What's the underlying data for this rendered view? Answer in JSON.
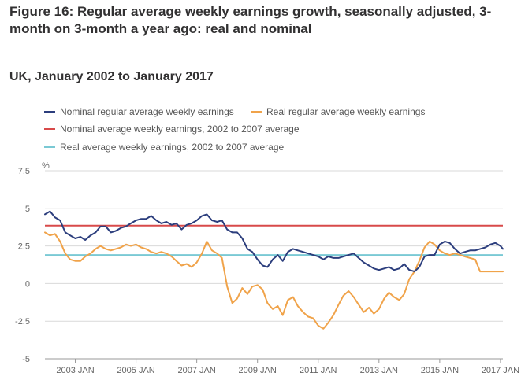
{
  "title": "Figure 16: Regular average weekly earnings growth, seasonally adjusted, 3-month on 3-month a year ago: real and nominal",
  "subtitle": "UK, January 2002 to January 2017",
  "colors": {
    "nominal": "#2c3e7d",
    "real": "#f0a34a",
    "nominal_avg": "#d84a4a",
    "real_avg": "#7ac9d4",
    "grid": "#d9d9d9",
    "axis_text": "#666666"
  },
  "legend": [
    {
      "key": "nominal",
      "label": "Nominal regular average weekly earnings"
    },
    {
      "key": "real",
      "label": "Real regular average weekly earnings"
    },
    {
      "key": "nominal_avg",
      "label": "Nominal average weekly earnings, 2002 to 2007 average"
    },
    {
      "key": "real_avg",
      "label": "Real average weekly earnings, 2002 to 2007 average"
    }
  ],
  "chart_data": {
    "type": "line",
    "title": "Figure 16: Regular average weekly earnings growth, seasonally adjusted, 3-month on 3-month a year ago: real and nominal",
    "ylabel": "%",
    "ylim": [
      -5,
      7.5
    ],
    "xlim": [
      2002.0,
      2017.08
    ],
    "yticks": [
      7.5,
      5,
      2.5,
      0,
      -2.5,
      -5
    ],
    "ytick_labels": [
      "7.5",
      "5",
      "2.5",
      "0",
      "-2.5",
      "-5"
    ],
    "xticks": [
      2003,
      2005,
      2007,
      2009,
      2011,
      2013,
      2015,
      2017
    ],
    "xtick_labels": [
      "2003 JAN",
      "2005 JAN",
      "2007 JAN",
      "2009 JAN",
      "2011 JAN",
      "2013 JAN",
      "2015 JAN",
      "2017 JAN"
    ],
    "series": [
      {
        "key": "nominal",
        "name": "Nominal regular average weekly earnings",
        "x": [
          2002.0,
          2002.17,
          2002.33,
          2002.5,
          2002.67,
          2002.83,
          2003.0,
          2003.17,
          2003.33,
          2003.5,
          2003.67,
          2003.83,
          2004.0,
          2004.17,
          2004.33,
          2004.5,
          2004.67,
          2004.83,
          2005.0,
          2005.17,
          2005.33,
          2005.5,
          2005.67,
          2005.83,
          2006.0,
          2006.17,
          2006.33,
          2006.5,
          2006.67,
          2006.83,
          2007.0,
          2007.17,
          2007.33,
          2007.5,
          2007.67,
          2007.83,
          2008.0,
          2008.17,
          2008.33,
          2008.5,
          2008.67,
          2008.83,
          2009.0,
          2009.17,
          2009.33,
          2009.5,
          2009.67,
          2009.83,
          2010.0,
          2010.17,
          2010.33,
          2010.5,
          2010.67,
          2010.83,
          2011.0,
          2011.17,
          2011.33,
          2011.5,
          2011.67,
          2011.83,
          2012.0,
          2012.17,
          2012.33,
          2012.5,
          2012.67,
          2012.83,
          2013.0,
          2013.17,
          2013.33,
          2013.5,
          2013.67,
          2013.83,
          2014.0,
          2014.17,
          2014.33,
          2014.5,
          2014.67,
          2014.83,
          2015.0,
          2015.17,
          2015.33,
          2015.5,
          2015.67,
          2015.83,
          2016.0,
          2016.17,
          2016.33,
          2016.5,
          2016.67,
          2016.83,
          2017.0,
          2017.08
        ],
        "values": [
          4.6,
          4.8,
          4.4,
          4.2,
          3.4,
          3.2,
          3.0,
          3.1,
          2.9,
          3.2,
          3.4,
          3.8,
          3.8,
          3.4,
          3.5,
          3.7,
          3.8,
          4.0,
          4.2,
          4.3,
          4.3,
          4.5,
          4.2,
          4.0,
          4.1,
          3.9,
          4.0,
          3.6,
          3.9,
          4.0,
          4.2,
          4.5,
          4.6,
          4.2,
          4.1,
          4.2,
          3.6,
          3.4,
          3.4,
          3.0,
          2.3,
          2.1,
          1.6,
          1.2,
          1.1,
          1.6,
          1.9,
          1.5,
          2.1,
          2.3,
          2.2,
          2.1,
          2.0,
          1.9,
          1.8,
          1.6,
          1.8,
          1.7,
          1.7,
          1.8,
          1.9,
          2.0,
          1.7,
          1.4,
          1.2,
          1.0,
          0.9,
          1.0,
          1.1,
          0.9,
          1.0,
          1.3,
          0.9,
          0.8,
          1.1,
          1.8,
          1.9,
          1.9,
          2.6,
          2.8,
          2.7,
          2.3,
          2.0,
          2.1,
          2.2,
          2.2,
          2.3,
          2.4,
          2.6,
          2.7,
          2.5,
          2.3
        ]
      },
      {
        "key": "real",
        "name": "Real regular average weekly earnings",
        "x": [
          2002.0,
          2002.17,
          2002.33,
          2002.5,
          2002.67,
          2002.83,
          2003.0,
          2003.17,
          2003.33,
          2003.5,
          2003.67,
          2003.83,
          2004.0,
          2004.17,
          2004.33,
          2004.5,
          2004.67,
          2004.83,
          2005.0,
          2005.17,
          2005.33,
          2005.5,
          2005.67,
          2005.83,
          2006.0,
          2006.17,
          2006.33,
          2006.5,
          2006.67,
          2006.83,
          2007.0,
          2007.17,
          2007.33,
          2007.5,
          2007.67,
          2007.83,
          2008.0,
          2008.17,
          2008.33,
          2008.5,
          2008.67,
          2008.83,
          2009.0,
          2009.17,
          2009.33,
          2009.5,
          2009.67,
          2009.83,
          2010.0,
          2010.17,
          2010.33,
          2010.5,
          2010.67,
          2010.83,
          2011.0,
          2011.17,
          2011.33,
          2011.5,
          2011.67,
          2011.83,
          2012.0,
          2012.17,
          2012.33,
          2012.5,
          2012.67,
          2012.83,
          2013.0,
          2013.17,
          2013.33,
          2013.5,
          2013.67,
          2013.83,
          2014.0,
          2014.17,
          2014.33,
          2014.5,
          2014.67,
          2014.83,
          2015.0,
          2015.17,
          2015.33,
          2015.5,
          2015.67,
          2015.83,
          2016.0,
          2016.17,
          2016.33,
          2016.5,
          2016.67,
          2016.83,
          2017.0,
          2017.08
        ],
        "values": [
          3.4,
          3.2,
          3.3,
          2.8,
          2.0,
          1.6,
          1.5,
          1.5,
          1.8,
          2.0,
          2.3,
          2.5,
          2.3,
          2.2,
          2.3,
          2.4,
          2.6,
          2.5,
          2.6,
          2.4,
          2.3,
          2.1,
          2.0,
          2.1,
          2.0,
          1.8,
          1.5,
          1.2,
          1.3,
          1.1,
          1.4,
          2.0,
          2.8,
          2.2,
          2.0,
          1.7,
          -0.2,
          -1.3,
          -1.0,
          -0.3,
          -0.7,
          -0.2,
          -0.1,
          -0.4,
          -1.3,
          -1.7,
          -1.5,
          -2.1,
          -1.1,
          -0.9,
          -1.5,
          -1.9,
          -2.2,
          -2.3,
          -2.8,
          -3.0,
          -2.6,
          -2.1,
          -1.4,
          -0.8,
          -0.5,
          -0.9,
          -1.4,
          -1.9,
          -1.6,
          -2.0,
          -1.7,
          -1.0,
          -0.6,
          -0.9,
          -1.1,
          -0.7,
          0.3,
          0.8,
          1.5,
          2.4,
          2.8,
          2.6,
          2.2,
          2.0,
          1.9,
          2.0,
          1.9,
          1.8,
          1.7,
          1.6,
          0.8,
          0.8,
          0.8,
          0.8,
          0.8,
          0.8
        ]
      }
    ],
    "reference_lines": [
      {
        "key": "nominal_avg",
        "name": "Nominal average weekly earnings, 2002 to 2007 average",
        "y": 3.85
      },
      {
        "key": "real_avg",
        "name": "Real average weekly earnings, 2002 to 2007 average",
        "y": 1.9
      }
    ]
  }
}
